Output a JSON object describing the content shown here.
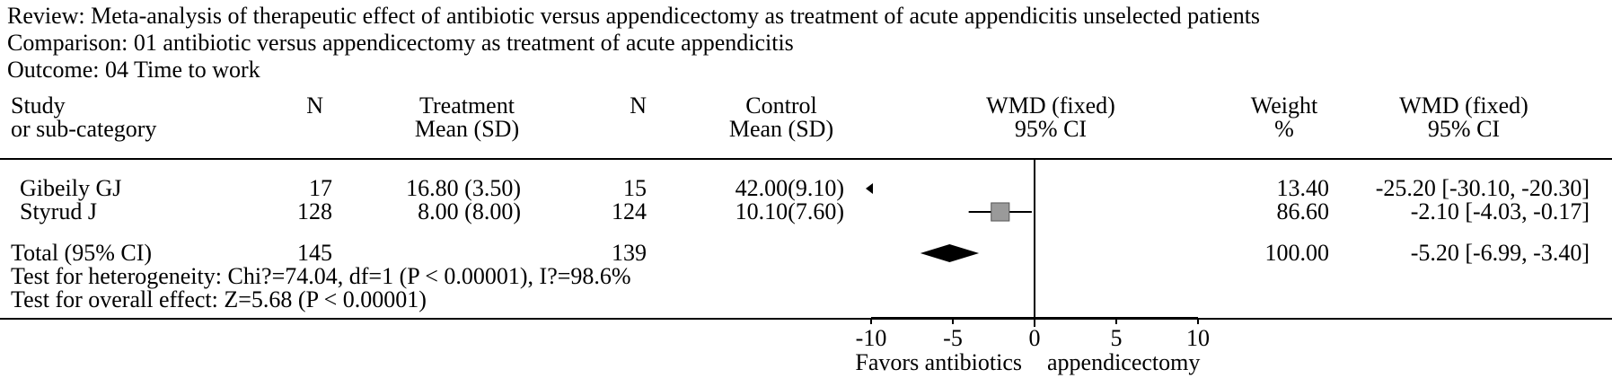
{
  "review": "Review: Meta-analysis of therapeutic effect of antibiotic versus appendicectomy as treatment of acute appendicitis unselected patients",
  "comparison": "Comparison: 01 antibiotic versus appendicectomy as treatment of acute appendicitis",
  "outcome": "Outcome: 04 Time to work",
  "headers": {
    "study_1": "Study",
    "study_2": "or sub-category",
    "n_t": "N",
    "treat_1": "Treatment",
    "treat_2": "Mean (SD)",
    "n_c": "N",
    "ctrl_1": "Control",
    "ctrl_2": "Mean (SD)",
    "wmd_1": "WMD (fixed)",
    "wmd_2": "95% CI",
    "weight_1": "Weight",
    "weight_2": "%",
    "ci_1": "WMD (fixed)",
    "ci_2": "95% CI"
  },
  "rows": [
    {
      "study": "Gibeily GJ",
      "n_t": "17",
      "treat": "16.80 (3.50)",
      "n_c": "15",
      "ctrl": "42.00(9.10)",
      "weight": "13.40",
      "ci": "-25.20 [-30.10, -20.30]"
    },
    {
      "study": "Styrud J",
      "n_t": "128",
      "treat": "8.00 (8.00)",
      "n_c": "124",
      "ctrl": "10.10(7.60)",
      "weight": "86.60",
      "ci": "-2.10 [-4.03, -0.17]"
    }
  ],
  "total": {
    "label": "Total (95% CI)",
    "n_t": "145",
    "n_c": "139",
    "weight": "100.00",
    "ci": "-5.20 [-6.99, -3.40]"
  },
  "heterogeneity": "Test for heterogeneity: Chi?=74.04, df=1 (P < 0.00001), I?=98.6%",
  "overall": "Test for overall effect: Z=5.68 (P < 0.00001)",
  "axis": {
    "ticks": [
      "-10",
      "-5",
      "0",
      "5",
      "10"
    ],
    "favors_left": "Favors antibiotics",
    "favors_right": "appendicectomy"
  },
  "colors": {
    "ink": "#000000",
    "marker": "#9a9a9a"
  },
  "chart_data": {
    "type": "forest",
    "xlim": [
      -10,
      10
    ],
    "ticks": [
      -10,
      -5,
      0,
      5,
      10
    ],
    "null_line": 0,
    "studies": [
      {
        "name": "Gibeily GJ",
        "estimate": -25.2,
        "lower": -30.1,
        "upper": -20.3,
        "weight": 13.4,
        "off_scale": "left"
      },
      {
        "name": "Styrud J",
        "estimate": -2.1,
        "lower": -4.03,
        "upper": -0.17,
        "weight": 86.6
      }
    ],
    "pooled": {
      "estimate": -5.2,
      "lower": -6.99,
      "upper": -3.4
    },
    "xlabel_left": "Favors antibiotics",
    "xlabel_right": "appendicectomy"
  }
}
